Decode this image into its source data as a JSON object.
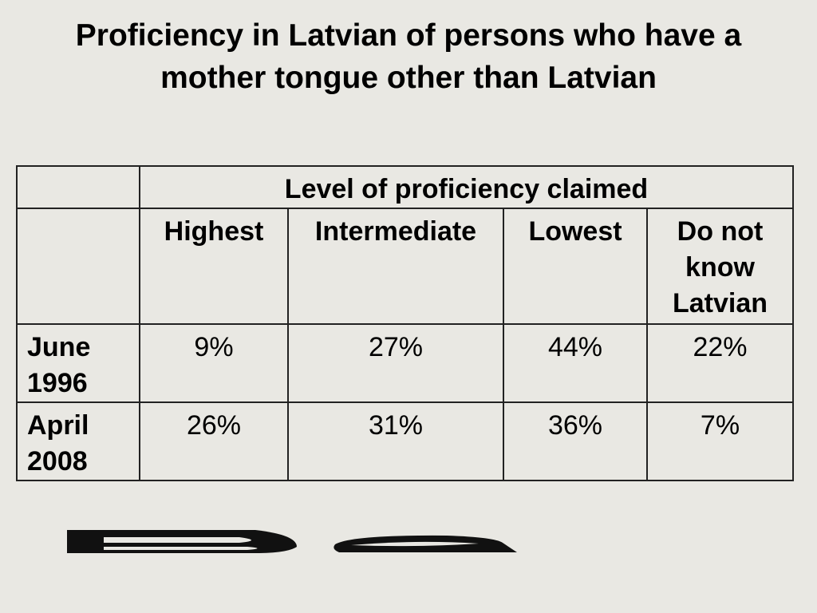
{
  "title": "Proficiency in Latvian of persons who have a mother tongue other than Latvian",
  "table": {
    "header": {
      "group_label": "Level of proficiency claimed",
      "columns": [
        "Highest",
        "Intermediate",
        "Lowest",
        "Do not know Latvian"
      ]
    },
    "rows": [
      {
        "label": "June 1996",
        "values": [
          "9%",
          "27%",
          "44%",
          "22%"
        ]
      },
      {
        "label": "April 2008",
        "values": [
          "26%",
          "31%",
          "36%",
          "7%"
        ]
      }
    ]
  }
}
